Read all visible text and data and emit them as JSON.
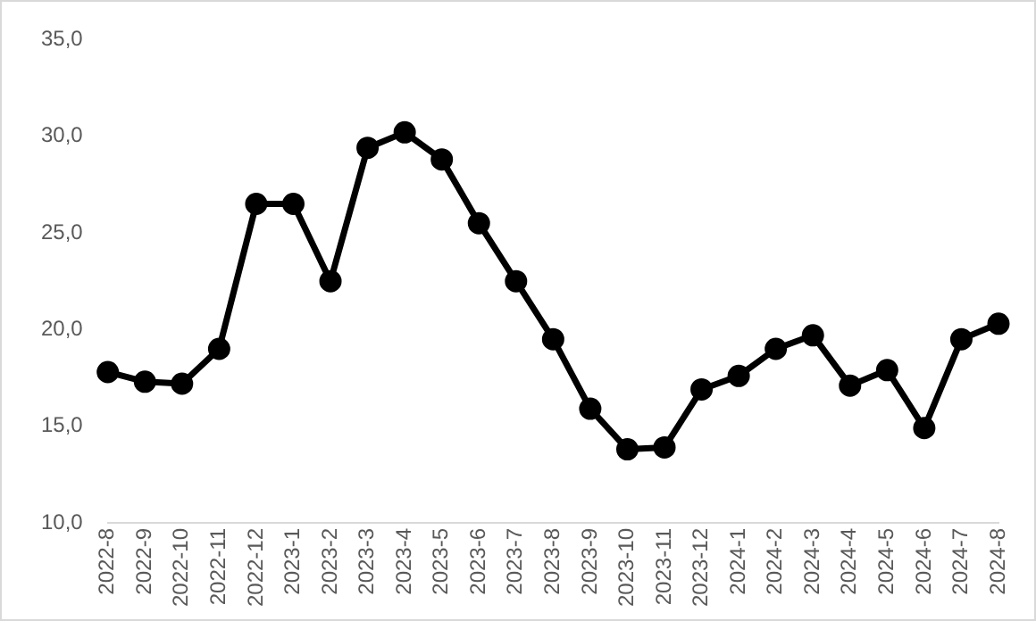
{
  "chart_data": {
    "type": "line",
    "categories": [
      "2022-8",
      "2022-9",
      "2022-10",
      "2022-11",
      "2022-12",
      "2023-1",
      "2023-2",
      "2023-3",
      "2023-4",
      "2023-5",
      "2023-6",
      "2023-7",
      "2023-8",
      "2023-9",
      "2023-10",
      "2023-11",
      "2023-12",
      "2024-1",
      "2024-2",
      "2024-3",
      "2024-4",
      "2024-5",
      "2024-6",
      "2024-7",
      "2024-8"
    ],
    "series": [
      {
        "color": "#000000",
        "values": [
          17.8,
          17.3,
          17.2,
          19.0,
          26.5,
          26.5,
          22.5,
          29.4,
          30.2,
          28.8,
          25.5,
          22.5,
          19.5,
          15.9,
          13.8,
          13.9,
          16.9,
          17.6,
          19.0,
          19.7,
          17.1,
          17.9,
          14.9,
          19.5,
          20.3
        ]
      }
    ],
    "ylim": [
      10,
      35
    ],
    "yticks": [
      {
        "value": 10,
        "label": "10,0"
      },
      {
        "value": 15,
        "label": "15,0"
      },
      {
        "value": 20,
        "label": "20,0"
      },
      {
        "value": 25,
        "label": "25,0"
      },
      {
        "value": 30,
        "label": "30,0"
      },
      {
        "value": 35,
        "label": "35,0"
      }
    ],
    "grid": false,
    "legend": false,
    "marker": "circle",
    "line_style": "solid"
  }
}
